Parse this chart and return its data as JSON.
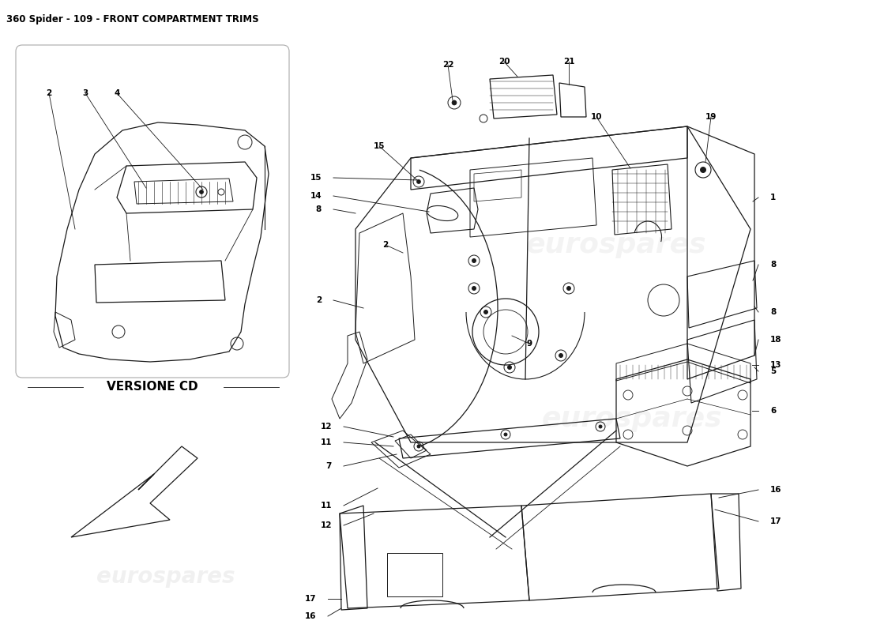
{
  "title": "360 Spider - 109 - FRONT COMPARTMENT TRIMS",
  "bg_color": "#ffffff",
  "title_fontsize": 8.5,
  "watermark_text": "eurospares",
  "versione_cd_text": "VERSIONE CD",
  "line_color": "#1a1a1a",
  "label_color": "#000000",
  "label_fontsize": 7.5,
  "watermark_alpha": 0.18,
  "watermark_fontsize": 22
}
